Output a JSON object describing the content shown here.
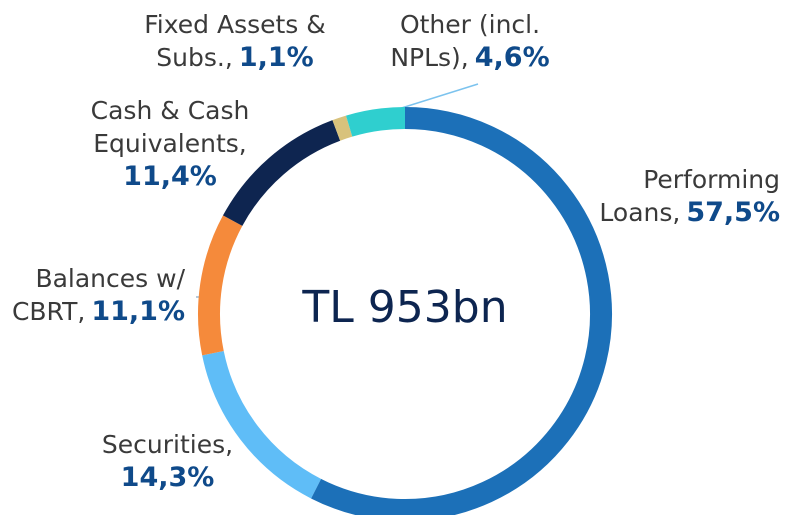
{
  "chart_data": {
    "type": "donut",
    "center_label": "TL 953bn",
    "categories": [
      "Performing Loans,",
      "Securities,",
      "Balances w/ CBRT,",
      "Cash & Cash Equivalents,",
      "Fixed Assets & Subs.,",
      "Other (incl. NPLs),"
    ],
    "values": [
      57.5,
      14.3,
      11.1,
      11.4,
      1.1,
      4.6
    ],
    "value_labels": [
      "57,5%",
      "14,3%",
      "11,1%",
      "11,4%",
      "1,1%",
      "4,6%"
    ],
    "colors": [
      "#1c70b8",
      "#5fbdf7",
      "#f58a3b",
      "#0e2550",
      "#d8c27c",
      "#2fcfcf"
    ]
  }
}
